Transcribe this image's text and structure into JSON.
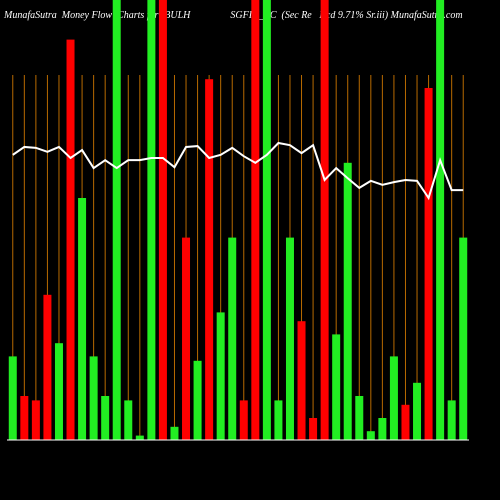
{
  "chart_data": {
    "type": "bar",
    "title": "MunafaSutra  Money Flow  Charts for IBULH                SGFIN_AC  (Sec Re   Ncd 9.71% Sr.iii) MunafaSutra.com",
    "categories": [
      null,
      null,
      null,
      null,
      null,
      null,
      null,
      null,
      null,
      null,
      null,
      null,
      null,
      null,
      null,
      null,
      null,
      null,
      null,
      null,
      null,
      null,
      null,
      null,
      null,
      null,
      null,
      null,
      null,
      null,
      null,
      null,
      null,
      null,
      null,
      null,
      null,
      null,
      null,
      null
    ],
    "values": [
      19,
      10,
      9,
      33,
      22,
      91,
      55,
      19,
      10,
      100,
      9,
      1,
      100,
      100,
      3,
      46,
      18,
      82,
      29,
      46,
      9,
      100,
      100,
      9,
      46,
      27,
      5,
      100,
      24,
      63,
      10,
      2,
      5,
      19,
      8,
      13,
      80,
      100,
      9,
      46
    ],
    "colors": [
      "#22ee22",
      "#ff0000",
      "#ff0000",
      "#ff0000",
      "#22ee22",
      "#ff0000",
      "#22ee22",
      "#22ee22",
      "#22ee22",
      "#22ee22",
      "#22ee22",
      "#22ee22",
      "#22ee22",
      "#ff0000",
      "#22ee22",
      "#ff0000",
      "#22ee22",
      "#ff0000",
      "#22ee22",
      "#22ee22",
      "#ff0000",
      "#ff0000",
      "#22ee22",
      "#22ee22",
      "#22ee22",
      "#ff0000",
      "#ff0000",
      "#ff0000",
      "#22ee22",
      "#22ee22",
      "#22ee22",
      "#22ee22",
      "#22ee22",
      "#22ee22",
      "#ff0000",
      "#22ee22",
      "#ff0000",
      "#22ee22",
      "#22ee22",
      "#22ee22"
    ],
    "line": {
      "color": "#ffffff",
      "values": [
        64.8,
        66.6,
        66.4,
        65.5,
        66.6,
        64.1,
        65.9,
        61.8,
        63.6,
        61.8,
        63.6,
        63.6,
        64.1,
        64.1,
        62.0,
        66.6,
        66.8,
        64.1,
        64.8,
        66.4,
        64.5,
        63.0,
        64.8,
        67.5,
        67.0,
        65.2,
        67.0,
        59.1,
        61.8,
        59.5,
        57.3,
        58.9,
        58.0,
        58.6,
        59.1,
        58.9,
        55.0,
        63.6,
        56.8,
        56.8
      ]
    },
    "ylim": [
      0,
      100
    ],
    "grid_color": "#b86a00"
  }
}
